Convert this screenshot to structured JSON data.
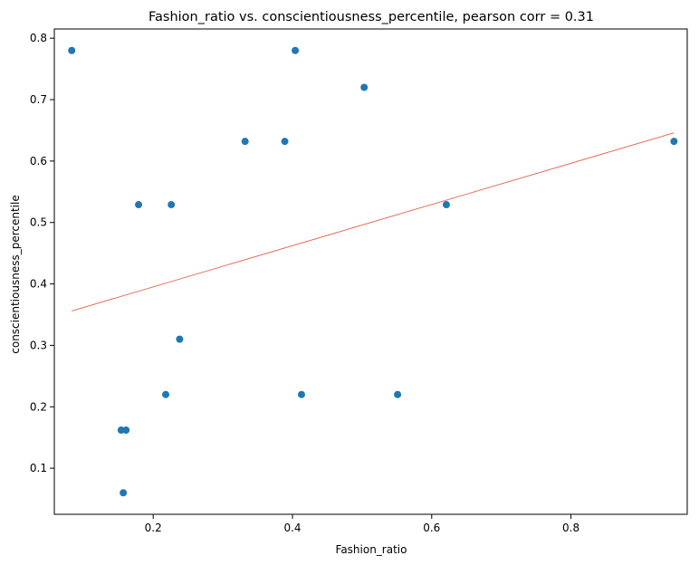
{
  "chart_data": {
    "type": "scatter",
    "title": "Fashion_ratio vs. conscientiousness_percentile, pearson corr = 0.31",
    "xlabel": "Fashion_ratio",
    "ylabel": "conscientiousness_percentile",
    "xlim": [
      0.058,
      0.967
    ],
    "ylim": [
      0.025,
      0.815
    ],
    "x_ticks": [
      0.2,
      0.4,
      0.6,
      0.8
    ],
    "x_tick_labels": [
      "0.2",
      "0.4",
      "0.6",
      "0.8"
    ],
    "y_ticks": [
      0.1,
      0.2,
      0.3,
      0.4,
      0.5,
      0.6,
      0.7,
      0.8
    ],
    "y_tick_labels": [
      "0.1",
      "0.2",
      "0.3",
      "0.4",
      "0.5",
      "0.6",
      "0.7",
      "0.8"
    ],
    "grid": false,
    "point_color": "#1f77b4",
    "trendline_color": "#e8604c",
    "points": [
      {
        "x": 0.083,
        "y": 0.78
      },
      {
        "x": 0.404,
        "y": 0.78
      },
      {
        "x": 0.503,
        "y": 0.72
      },
      {
        "x": 0.332,
        "y": 0.632
      },
      {
        "x": 0.389,
        "y": 0.632
      },
      {
        "x": 0.948,
        "y": 0.632
      },
      {
        "x": 0.179,
        "y": 0.529
      },
      {
        "x": 0.226,
        "y": 0.529
      },
      {
        "x": 0.621,
        "y": 0.529
      },
      {
        "x": 0.238,
        "y": 0.31
      },
      {
        "x": 0.218,
        "y": 0.22
      },
      {
        "x": 0.413,
        "y": 0.22
      },
      {
        "x": 0.551,
        "y": 0.22
      },
      {
        "x": 0.154,
        "y": 0.162
      },
      {
        "x": 0.161,
        "y": 0.162
      },
      {
        "x": 0.157,
        "y": 0.06
      }
    ],
    "trendline": {
      "x": [
        0.083,
        0.948
      ],
      "y": [
        0.356,
        0.646
      ]
    }
  }
}
